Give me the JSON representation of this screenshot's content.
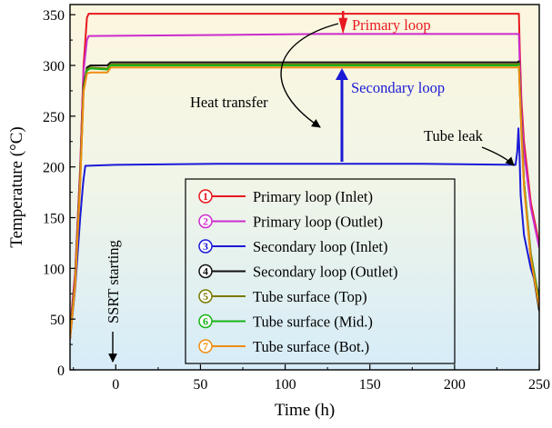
{
  "chart_data": {
    "type": "line",
    "xlabel": "Time (h)",
    "ylabel": "Temperature (°C)",
    "xlim": [
      -27,
      250
    ],
    "ylim": [
      0,
      360
    ],
    "xticks": [
      0,
      50,
      100,
      150,
      200,
      250
    ],
    "yticks": [
      0,
      50,
      100,
      150,
      200,
      250,
      300,
      350
    ],
    "series": [
      {
        "id": 1,
        "name": "Primary loop (Inlet)",
        "color": "#e8191f",
        "points": [
          [
            -27,
            40
          ],
          [
            -24,
            95
          ],
          [
            -21,
            200
          ],
          [
            -19,
            300
          ],
          [
            -17,
            347
          ],
          [
            -16,
            351
          ],
          [
            60,
            351
          ],
          [
            120,
            351
          ],
          [
            180,
            351
          ],
          [
            238,
            351
          ],
          [
            238.5,
            315
          ],
          [
            239.5,
            265
          ],
          [
            241,
            225
          ],
          [
            245,
            165
          ],
          [
            250,
            124
          ]
        ]
      },
      {
        "id": 2,
        "name": "Primary loop (Outlet)",
        "color": "#cc2ccc",
        "points": [
          [
            -27,
            36
          ],
          [
            -24,
            90
          ],
          [
            -21,
            195
          ],
          [
            -19,
            295
          ],
          [
            -17,
            325
          ],
          [
            -16,
            329
          ],
          [
            60,
            330
          ],
          [
            120,
            331
          ],
          [
            180,
            331
          ],
          [
            238,
            331
          ],
          [
            238.5,
            300
          ],
          [
            239.5,
            255
          ],
          [
            241,
            215
          ],
          [
            245,
            160
          ],
          [
            250,
            120
          ]
        ]
      },
      {
        "id": 3,
        "name": "Secondary loop (Inlet)",
        "color": "#1a1ad6",
        "points": [
          [
            -27,
            30
          ],
          [
            -24,
            80
          ],
          [
            -21,
            150
          ],
          [
            -19.5,
            180
          ],
          [
            -19,
            188
          ],
          [
            -18,
            201
          ],
          [
            0,
            202
          ],
          [
            60,
            203
          ],
          [
            120,
            203
          ],
          [
            180,
            203
          ],
          [
            236,
            202
          ],
          [
            237,
            215
          ],
          [
            237.7,
            238
          ],
          [
            238.3,
            215
          ],
          [
            239,
            172
          ],
          [
            241,
            133
          ],
          [
            245,
            100
          ],
          [
            250,
            74
          ]
        ]
      },
      {
        "id": 4,
        "name": "Secondary loop (Outlet)",
        "color": "#111111",
        "points": [
          [
            -27,
            34
          ],
          [
            -24,
            85
          ],
          [
            -21,
            190
          ],
          [
            -19,
            280
          ],
          [
            -17,
            298
          ],
          [
            -15,
            300
          ],
          [
            -5,
            300
          ],
          [
            -3,
            303
          ],
          [
            60,
            303
          ],
          [
            120,
            303
          ],
          [
            180,
            303
          ],
          [
            237,
            303
          ],
          [
            238,
            304
          ],
          [
            238.5,
            280
          ],
          [
            239.5,
            240
          ],
          [
            241,
            185
          ],
          [
            245,
            110
          ],
          [
            250,
            58
          ]
        ]
      },
      {
        "id": 5,
        "name": "Tube surface (Top)",
        "color": "#7a7a00",
        "points": [
          [
            -27,
            33
          ],
          [
            -24,
            85
          ],
          [
            -21,
            188
          ],
          [
            -19,
            278
          ],
          [
            -17,
            296
          ],
          [
            -15,
            298
          ],
          [
            -5,
            297
          ],
          [
            -3,
            301
          ],
          [
            60,
            301
          ],
          [
            120,
            301
          ],
          [
            180,
            301
          ],
          [
            237,
            301
          ],
          [
            238,
            302
          ],
          [
            238.5,
            278
          ],
          [
            239.5,
            238
          ],
          [
            241,
            185
          ],
          [
            245,
            115
          ],
          [
            250,
            68
          ]
        ]
      },
      {
        "id": 6,
        "name": "Tube surface (Mid.)",
        "color": "#18b418",
        "points": [
          [
            -27,
            32
          ],
          [
            -24,
            84
          ],
          [
            -21,
            186
          ],
          [
            -19,
            276
          ],
          [
            -17,
            295
          ],
          [
            -15,
            297
          ],
          [
            -5,
            296
          ],
          [
            -3,
            300
          ],
          [
            60,
            300
          ],
          [
            120,
            300
          ],
          [
            180,
            300
          ],
          [
            237,
            300
          ],
          [
            238,
            301
          ],
          [
            238.5,
            276
          ],
          [
            239.5,
            236
          ],
          [
            241,
            183
          ],
          [
            245,
            112
          ],
          [
            250,
            65
          ]
        ]
      },
      {
        "id": 7,
        "name": "Tube surface (Bot.)",
        "color": "#f08c12",
        "points": [
          [
            -27,
            30
          ],
          [
            -24,
            82
          ],
          [
            -21,
            184
          ],
          [
            -19,
            274
          ],
          [
            -17,
            292
          ],
          [
            -15,
            293
          ],
          [
            -5,
            293
          ],
          [
            -3,
            298
          ],
          [
            60,
            298
          ],
          [
            120,
            298
          ],
          [
            180,
            298
          ],
          [
            237,
            298
          ],
          [
            238,
            299
          ],
          [
            238.5,
            274
          ],
          [
            239.5,
            234
          ],
          [
            241,
            180
          ],
          [
            245,
            110
          ],
          [
            250,
            62
          ]
        ]
      }
    ],
    "annotations": {
      "primary_loop": "Primary loop",
      "secondary_loop": "Secondary loop",
      "heat_transfer": "Heat transfer",
      "tube_leak": "Tube leak",
      "ssrt_starting": "SSRT starting"
    },
    "badge_labels": [
      "1",
      "2",
      "3",
      "4",
      "5",
      "6",
      "7"
    ]
  },
  "colors": {
    "primary_annotation": "#e8191f",
    "secondary_annotation": "#1a1ad6",
    "background_gradient_top": "#fdf6df",
    "background_gradient_bottom": "#d6ecf8"
  }
}
